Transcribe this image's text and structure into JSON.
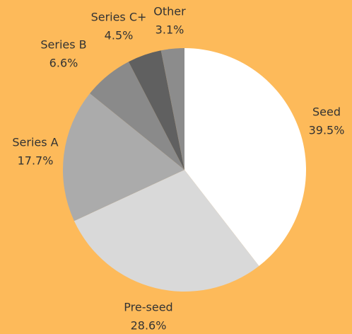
{
  "chart_data": {
    "type": "pie",
    "categories": [
      "Seed",
      "Pre-seed",
      "Series A",
      "Series B",
      "Series C+",
      "Other"
    ],
    "values": [
      39.5,
      28.6,
      17.7,
      6.6,
      4.5,
      3.1
    ],
    "value_labels": [
      "39.5%",
      "28.6%",
      "17.7%",
      "6.6%",
      "4.5%",
      "3.1%"
    ],
    "colors": [
      "#ffffff",
      "#d9d9d9",
      "#ababab",
      "#8a8a8a",
      "#606060",
      "#8c8c8c"
    ]
  }
}
